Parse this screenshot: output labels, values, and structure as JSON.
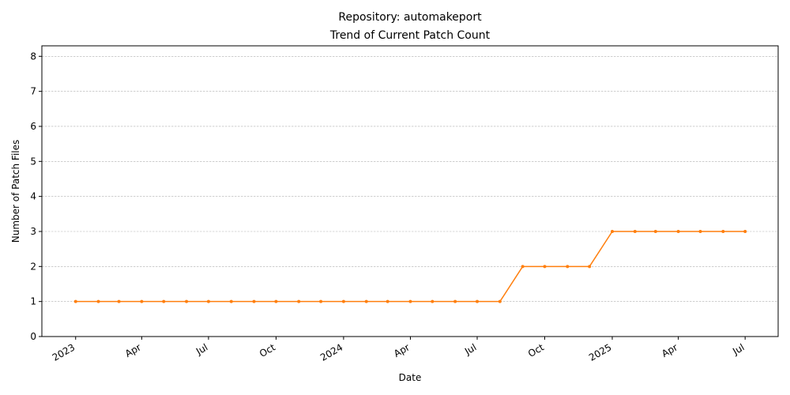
{
  "chart_data": {
    "type": "line",
    "title_line1": "Repository: automakeport",
    "title_line2": "Trend of Current Patch Count",
    "xlabel": "Date",
    "ylabel": "Number of Patch Files",
    "ylim": [
      0,
      8.3
    ],
    "y_ticks": [
      0,
      1,
      2,
      3,
      4,
      5,
      6,
      7,
      8
    ],
    "xlim": [
      "2022-11-16",
      "2025-08-15"
    ],
    "x_ticks": [
      {
        "date": "2023-01-01",
        "label": "2023"
      },
      {
        "date": "2023-04-01",
        "label": "Apr"
      },
      {
        "date": "2023-07-01",
        "label": "Jul"
      },
      {
        "date": "2023-10-01",
        "label": "Oct"
      },
      {
        "date": "2024-01-01",
        "label": "2024"
      },
      {
        "date": "2024-04-01",
        "label": "Apr"
      },
      {
        "date": "2024-07-01",
        "label": "Jul"
      },
      {
        "date": "2024-10-01",
        "label": "Oct"
      },
      {
        "date": "2025-01-01",
        "label": "2025"
      },
      {
        "date": "2025-04-01",
        "label": "Apr"
      },
      {
        "date": "2025-07-01",
        "label": "Jul"
      }
    ],
    "grid": "y-dashed",
    "color": "#ff7f0e",
    "x": [
      "2023-01-01",
      "2023-02-01",
      "2023-03-01",
      "2023-04-01",
      "2023-05-01",
      "2023-06-01",
      "2023-07-01",
      "2023-08-01",
      "2023-09-01",
      "2023-10-01",
      "2023-11-01",
      "2023-12-01",
      "2024-01-01",
      "2024-02-01",
      "2024-03-01",
      "2024-04-01",
      "2024-05-01",
      "2024-06-01",
      "2024-07-01",
      "2024-08-01",
      "2024-09-01",
      "2024-10-01",
      "2024-11-01",
      "2024-12-01",
      "2025-01-01",
      "2025-02-01",
      "2025-03-01",
      "2025-04-01",
      "2025-05-01",
      "2025-06-01",
      "2025-07-01"
    ],
    "y": [
      1,
      1,
      1,
      1,
      1,
      1,
      1,
      1,
      1,
      1,
      1,
      1,
      1,
      1,
      1,
      1,
      1,
      1,
      1,
      1,
      2,
      2,
      2,
      2,
      3,
      3,
      3,
      3,
      3,
      3,
      3
    ]
  }
}
